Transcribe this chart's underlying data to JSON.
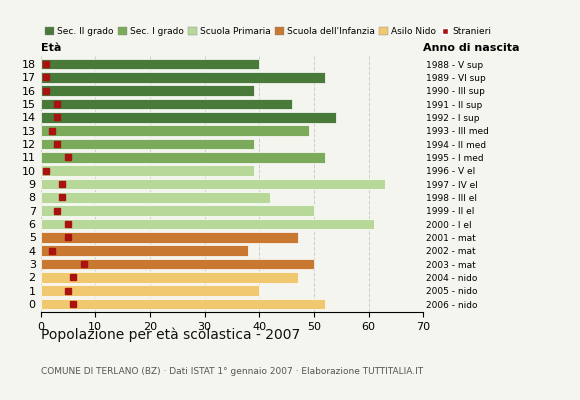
{
  "ages": [
    18,
    17,
    16,
    15,
    14,
    13,
    12,
    11,
    10,
    9,
    8,
    7,
    6,
    5,
    4,
    3,
    2,
    1,
    0
  ],
  "bar_values": [
    40,
    52,
    39,
    46,
    54,
    49,
    39,
    52,
    39,
    63,
    42,
    50,
    61,
    47,
    38,
    50,
    47,
    40,
    52
  ],
  "stranieri": [
    1,
    1,
    1,
    3,
    3,
    2,
    3,
    5,
    1,
    4,
    4,
    3,
    5,
    5,
    2,
    8,
    6,
    5,
    6
  ],
  "bar_colors": [
    "#4a7a3a",
    "#4a7a3a",
    "#4a7a3a",
    "#4a7a3a",
    "#4a7a3a",
    "#7aaa5a",
    "#7aaa5a",
    "#7aaa5a",
    "#b8d89a",
    "#b8d89a",
    "#b8d89a",
    "#b8d89a",
    "#b8d89a",
    "#c87830",
    "#c87830",
    "#c87830",
    "#f0c870",
    "#f0c870",
    "#f0c870"
  ],
  "anno_labels": [
    "1988 - V sup",
    "1989 - VI sup",
    "1990 - III sup",
    "1991 - II sup",
    "1992 - I sup",
    "1993 - III med",
    "1994 - II med",
    "1995 - I med",
    "1996 - V el",
    "1997 - IV el",
    "1998 - III el",
    "1999 - II el",
    "2000 - I el",
    "2001 - mat",
    "2002 - mat",
    "2003 - mat",
    "2004 - nido",
    "2005 - nido",
    "2006 - nido"
  ],
  "legend_labels": [
    "Sec. II grado",
    "Sec. I grado",
    "Scuola Primaria",
    "Scuola dell'Infanzia",
    "Asilo Nido",
    "Stranieri"
  ],
  "legend_colors": [
    "#4a7a3a",
    "#7aaa5a",
    "#b8d89a",
    "#c87830",
    "#f0c870",
    "#aa1111"
  ],
  "title": "Popolazione per età scolastica - 2007",
  "subtitle": "COMUNE DI TERLANO (BZ) · Dati ISTAT 1° gennaio 2007 · Elaborazione TUTTITALIA.IT",
  "label_eta": "Età",
  "label_anno": "Anno di nascita",
  "xlim": [
    0,
    70
  ],
  "xticks": [
    0,
    10,
    20,
    30,
    40,
    50,
    60,
    70
  ],
  "bg_color": "#f5f5f0",
  "bar_height": 0.78,
  "stranieri_color": "#aa1111",
  "stranieri_size": 5
}
